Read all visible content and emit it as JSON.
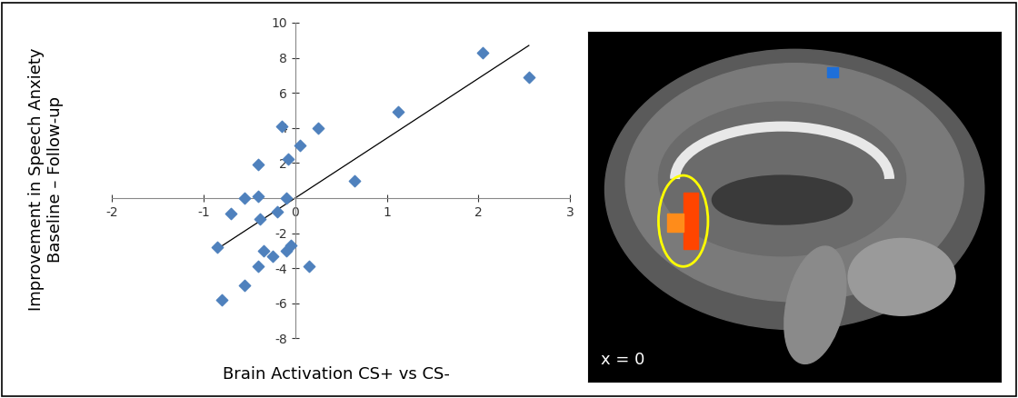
{
  "chart_data": {
    "type": "scatter",
    "x_label": "Brain Activation CS+ vs CS-",
    "y_label": "Improvement in Speech Anxiety\nBaseline – Follow-up",
    "x": [
      -0.85,
      -0.8,
      -0.7,
      -0.55,
      -0.55,
      -0.4,
      -0.4,
      -0.38,
      -0.35,
      -0.4,
      -0.25,
      -0.2,
      -0.15,
      -0.1,
      -0.08,
      -0.1,
      -0.05,
      0.05,
      0.15,
      0.25,
      0.65,
      1.12,
      2.05,
      2.55
    ],
    "values": [
      -2.8,
      -5.8,
      -0.9,
      0.0,
      -5.0,
      0.1,
      1.9,
      -1.2,
      -3.0,
      -3.9,
      -3.3,
      -0.8,
      4.1,
      0.0,
      2.2,
      -3.0,
      -2.7,
      3.0,
      -3.9,
      4.0,
      1.0,
      4.9,
      8.3,
      6.9
    ],
    "color": "#4f81bd",
    "marker": "diamond",
    "trend_line": {
      "x": [
        -0.85,
        2.55
      ],
      "y": [
        -2.9,
        8.7
      ]
    },
    "xlim": [
      -2,
      3
    ],
    "xticks": [
      -2,
      -1,
      0,
      1,
      2,
      3
    ],
    "ylim": [
      -8,
      10
    ],
    "yticks": [
      -8,
      -6,
      -4,
      -2,
      2,
      4,
      6,
      8,
      10
    ],
    "grid": false
  },
  "image_panel": {
    "label": "x = 0"
  }
}
